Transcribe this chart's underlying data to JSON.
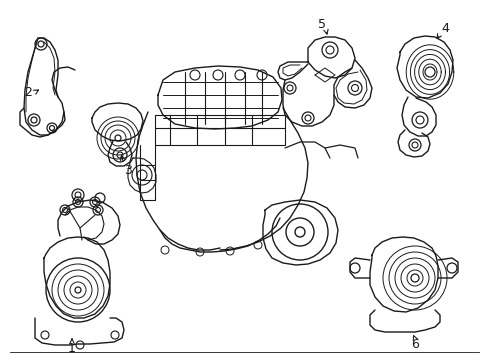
{
  "background_color": "#ffffff",
  "line_color": "#1a1a1a",
  "line_width": 1.0,
  "label_fontsize": 9,
  "fig_w": 4.89,
  "fig_h": 3.6,
  "dpi": 100
}
